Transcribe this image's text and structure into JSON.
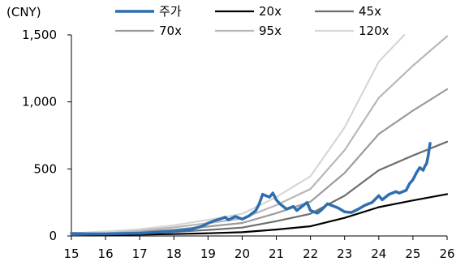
{
  "chart_data": {
    "type": "line",
    "unit_label": "(CNY)",
    "x_ticks": [
      15,
      16,
      17,
      18,
      19,
      20,
      21,
      22,
      23,
      24,
      25,
      26
    ],
    "y_ticks": [
      0,
      500,
      1000,
      1500
    ],
    "y_tick_labels": [
      "0",
      "500",
      "1,000",
      "1,500"
    ],
    "xlim": [
      15,
      26
    ],
    "ylim": [
      0,
      1500
    ],
    "legend_position": "top",
    "series": [
      {
        "name": "주가",
        "color": "#2e6eb0",
        "style": "thick",
        "points": [
          [
            15.0,
            18
          ],
          [
            15.5,
            16
          ],
          [
            16.0,
            15
          ],
          [
            16.5,
            18
          ],
          [
            17.0,
            20
          ],
          [
            17.5,
            28
          ],
          [
            18.0,
            35
          ],
          [
            18.5,
            50
          ],
          [
            18.8,
            70
          ],
          [
            19.0,
            95
          ],
          [
            19.2,
            115
          ],
          [
            19.4,
            130
          ],
          [
            19.5,
            140
          ],
          [
            19.6,
            120
          ],
          [
            19.8,
            145
          ],
          [
            20.0,
            125
          ],
          [
            20.2,
            150
          ],
          [
            20.4,
            190
          ],
          [
            20.5,
            240
          ],
          [
            20.6,
            310
          ],
          [
            20.8,
            290
          ],
          [
            20.9,
            320
          ],
          [
            21.0,
            270
          ],
          [
            21.1,
            240
          ],
          [
            21.3,
            200
          ],
          [
            21.5,
            220
          ],
          [
            21.6,
            190
          ],
          [
            21.8,
            230
          ],
          [
            21.9,
            250
          ],
          [
            22.0,
            190
          ],
          [
            22.2,
            170
          ],
          [
            22.3,
            190
          ],
          [
            22.5,
            240
          ],
          [
            22.6,
            230
          ],
          [
            22.8,
            210
          ],
          [
            23.0,
            180
          ],
          [
            23.2,
            175
          ],
          [
            23.4,
            200
          ],
          [
            23.6,
            230
          ],
          [
            23.8,
            250
          ],
          [
            24.0,
            300
          ],
          [
            24.1,
            270
          ],
          [
            24.3,
            310
          ],
          [
            24.5,
            330
          ],
          [
            24.6,
            320
          ],
          [
            24.8,
            340
          ],
          [
            24.9,
            390
          ],
          [
            25.0,
            420
          ],
          [
            25.1,
            470
          ],
          [
            25.2,
            510
          ],
          [
            25.3,
            490
          ],
          [
            25.35,
            520
          ],
          [
            25.4,
            540
          ],
          [
            25.45,
            600
          ],
          [
            25.5,
            690
          ]
        ]
      },
      {
        "name": "20x",
        "color": "#000000",
        "style": "normal",
        "points": [
          [
            15,
            5
          ],
          [
            16,
            7
          ],
          [
            17,
            10
          ],
          [
            18,
            14
          ],
          [
            19,
            20
          ],
          [
            20,
            28
          ],
          [
            21,
            48
          ],
          [
            22,
            72
          ],
          [
            23,
            135
          ],
          [
            24,
            215
          ],
          [
            25,
            265
          ],
          [
            26,
            312
          ]
        ]
      },
      {
        "name": "45x",
        "color": "#6e6e6e",
        "style": "normal",
        "points": [
          [
            15,
            8
          ],
          [
            16,
            13
          ],
          [
            17,
            20
          ],
          [
            18,
            30
          ],
          [
            19,
            45
          ],
          [
            20,
            62
          ],
          [
            21,
            110
          ],
          [
            22,
            165
          ],
          [
            23,
            300
          ],
          [
            24,
            490
          ],
          [
            25,
            600
          ],
          [
            26,
            703
          ]
        ]
      },
      {
        "name": "70x",
        "color": "#9a9a9a",
        "style": "normal",
        "points": [
          [
            15,
            12
          ],
          [
            16,
            20
          ],
          [
            17,
            30
          ],
          [
            18,
            47
          ],
          [
            19,
            70
          ],
          [
            20,
            97
          ],
          [
            21,
            170
          ],
          [
            22,
            255
          ],
          [
            23,
            470
          ],
          [
            24,
            760
          ],
          [
            25,
            935
          ],
          [
            26,
            1095
          ]
        ]
      },
      {
        "name": "95x",
        "color": "#b7b7b7",
        "style": "normal",
        "points": [
          [
            15,
            16
          ],
          [
            16,
            26
          ],
          [
            17,
            40
          ],
          [
            18,
            64
          ],
          [
            19,
            95
          ],
          [
            20,
            130
          ],
          [
            21,
            230
          ],
          [
            22,
            350
          ],
          [
            23,
            640
          ],
          [
            24,
            1030
          ],
          [
            25,
            1270
          ],
          [
            26,
            1490
          ]
        ]
      },
      {
        "name": "120x",
        "color": "#d6d6d6",
        "style": "normal",
        "points": [
          [
            15,
            20
          ],
          [
            16,
            33
          ],
          [
            17,
            50
          ],
          [
            18,
            80
          ],
          [
            19,
            120
          ],
          [
            20,
            165
          ],
          [
            21,
            290
          ],
          [
            22,
            445
          ],
          [
            23,
            810
          ],
          [
            24,
            1300
          ],
          [
            24.75,
            1500
          ]
        ]
      }
    ]
  }
}
